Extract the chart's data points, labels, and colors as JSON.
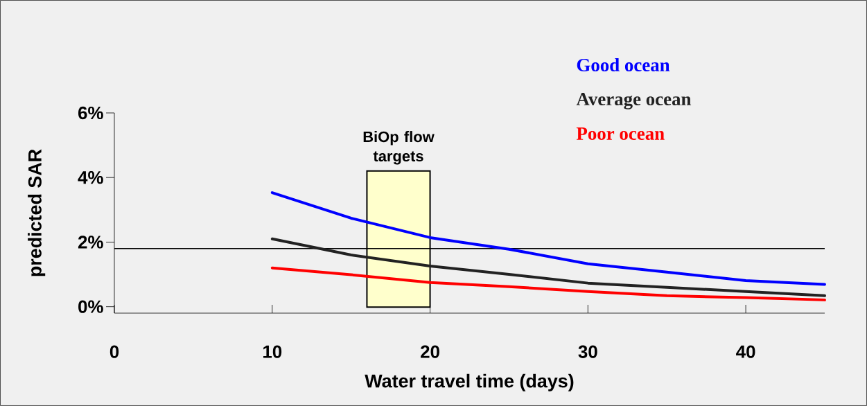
{
  "chart_data": {
    "type": "line",
    "xlabel": "Water travel time (days)",
    "ylabel": "predicted SAR",
    "x": [
      10,
      15,
      20,
      25,
      30,
      35,
      40,
      45
    ],
    "series": [
      {
        "name": "Good ocean",
        "color": "#0000ff",
        "values": [
          3.53,
          2.74,
          2.14,
          1.78,
          1.33,
          1.07,
          0.81,
          0.69
        ]
      },
      {
        "name": "Average ocean",
        "color": "#222222",
        "values": [
          2.1,
          1.6,
          1.26,
          1.0,
          0.73,
          0.6,
          0.47,
          0.34
        ]
      },
      {
        "name": "Poor ocean",
        "color": "#ff0000",
        "values": [
          1.2,
          0.99,
          0.75,
          0.62,
          0.47,
          0.34,
          0.28,
          0.21
        ]
      }
    ],
    "xlim": [
      0,
      45
    ],
    "ylim": [
      -0.2,
      6
    ],
    "xticks": [
      0,
      10,
      20,
      30,
      40
    ],
    "yticks": [
      {
        "value": 0,
        "label": "0%"
      },
      {
        "value": 2,
        "label": "2%"
      },
      {
        "value": 4,
        "label": "4%"
      },
      {
        "value": 6,
        "label": "6%"
      }
    ],
    "ref_lines": [
      {
        "axis": "y",
        "value": 1.8,
        "color": "#000000"
      }
    ],
    "bands": [
      {
        "axis": "x",
        "from": 16,
        "to": 20,
        "label": "BiOp flow targets",
        "color": "#ffffcc"
      }
    ],
    "legend": "top right",
    "grid": false,
    "marker": "none",
    "line_style": "solid"
  }
}
